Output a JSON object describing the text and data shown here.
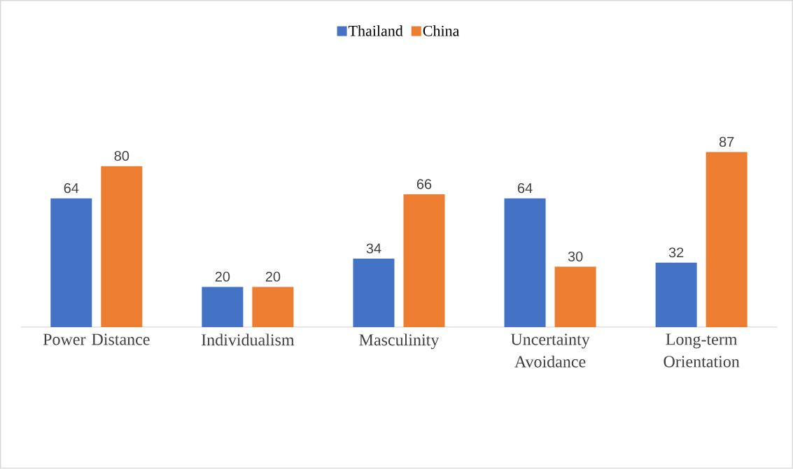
{
  "chart_data": {
    "type": "bar",
    "categories": [
      "Power Distance",
      "Individualism",
      "Masculinity",
      "Uncertainty Avoidance",
      "Long-term Orientation"
    ],
    "series": [
      {
        "name": "Thailand",
        "color": "#4472c4",
        "values": [
          64,
          20,
          34,
          64,
          32
        ]
      },
      {
        "name": "China",
        "color": "#ed7d31",
        "values": [
          80,
          20,
          66,
          30,
          87
        ]
      }
    ],
    "data_labels": true,
    "legend": "top"
  }
}
